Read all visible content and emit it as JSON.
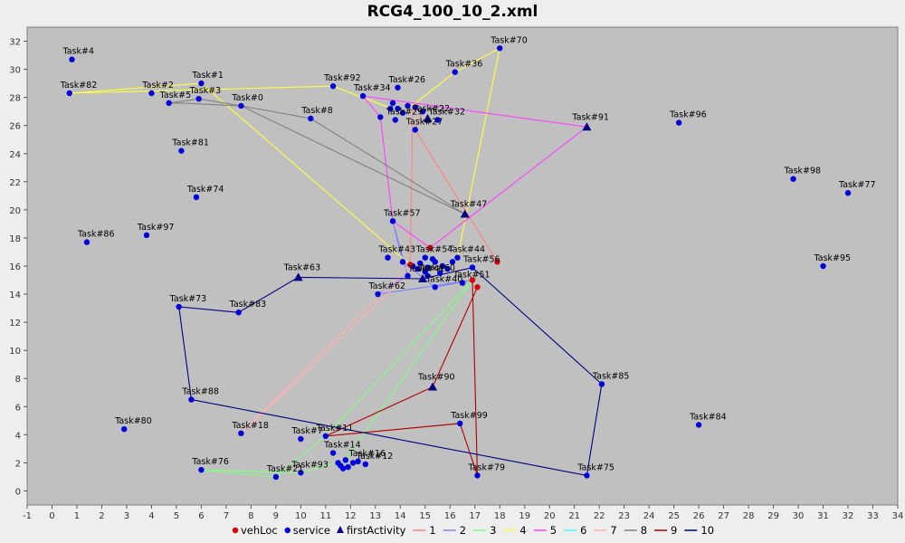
{
  "chart_data": {
    "type": "scatter",
    "title": "RCG4_100_10_2.xml",
    "xlabel": "",
    "ylabel": "",
    "xlim": [
      -1,
      34
    ],
    "ylim": [
      -1,
      33
    ],
    "grid": false,
    "legend_position": "bottom",
    "x_ticks": [
      -1,
      0,
      1,
      2,
      3,
      4,
      5,
      6,
      7,
      8,
      9,
      10,
      11,
      12,
      13,
      14,
      15,
      16,
      17,
      18,
      19,
      20,
      21,
      22,
      23,
      24,
      25,
      26,
      27,
      28,
      29,
      30,
      31,
      32,
      33,
      34
    ],
    "y_ticks": [
      0,
      2,
      4,
      6,
      8,
      10,
      12,
      14,
      16,
      18,
      20,
      22,
      24,
      26,
      28,
      30,
      32
    ],
    "legend": [
      {
        "label": "vehLoc",
        "kind": "dot",
        "color": "#dd0000"
      },
      {
        "label": "service",
        "kind": "dot",
        "color": "#0000dd"
      },
      {
        "label": "firstActivity",
        "kind": "triangle",
        "color": "#000080"
      },
      {
        "label": "1",
        "kind": "line",
        "color": "#ff8080"
      },
      {
        "label": "2",
        "kind": "line",
        "color": "#8080ff"
      },
      {
        "label": "3",
        "kind": "line",
        "color": "#80ff80"
      },
      {
        "label": "4",
        "kind": "line",
        "color": "#ffff40"
      },
      {
        "label": "5",
        "kind": "line",
        "color": "#ff40ff"
      },
      {
        "label": "6",
        "kind": "line",
        "color": "#40ffff"
      },
      {
        "label": "7",
        "kind": "line",
        "color": "#ffb0b0"
      },
      {
        "label": "8",
        "kind": "line",
        "color": "#808080"
      },
      {
        "label": "9",
        "kind": "line",
        "color": "#b00000"
      },
      {
        "label": "10",
        "kind": "line",
        "color": "#000080"
      }
    ],
    "vehicle_locations": [
      {
        "x": 17.9,
        "y": 16.3
      },
      {
        "x": 15.2,
        "y": 17.3
      },
      {
        "x": 16.9,
        "y": 15.0
      },
      {
        "x": 17.1,
        "y": 14.5
      },
      {
        "x": 14.4,
        "y": 16.1
      }
    ],
    "services": [
      {
        "label": "Task#1",
        "x": 6.0,
        "y": 29.0
      },
      {
        "label": "Task#2",
        "x": 4.0,
        "y": 28.3
      },
      {
        "label": "Task#3",
        "x": 5.9,
        "y": 27.9
      },
      {
        "label": "Task#4",
        "x": 0.8,
        "y": 30.7
      },
      {
        "label": "Task#5",
        "x": 4.7,
        "y": 27.6
      },
      {
        "label": "Task#0",
        "x": 7.6,
        "y": 27.4
      },
      {
        "label": "Task#82",
        "x": 0.7,
        "y": 28.3
      },
      {
        "label": "Task#92",
        "x": 11.3,
        "y": 28.8
      },
      {
        "label": "Task#34",
        "x": 12.5,
        "y": 28.1
      },
      {
        "label": "Task#26",
        "x": 13.9,
        "y": 28.7
      },
      {
        "label": "Task#8",
        "x": 10.4,
        "y": 26.5
      },
      {
        "label": "Task#36",
        "x": 16.2,
        "y": 29.8
      },
      {
        "label": "Task#70",
        "x": 18.0,
        "y": 31.5
      },
      {
        "label": "Task#96",
        "x": 25.2,
        "y": 26.2
      },
      {
        "label": "Task#81",
        "x": 5.2,
        "y": 24.2
      },
      {
        "label": "Task#98",
        "x": 29.8,
        "y": 22.2
      },
      {
        "label": "Task#77",
        "x": 32.0,
        "y": 21.2
      },
      {
        "label": "Task#74",
        "x": 5.8,
        "y": 20.9
      },
      {
        "label": "Task#86",
        "x": 1.4,
        "y": 17.7
      },
      {
        "label": "Task#97",
        "x": 3.8,
        "y": 18.2
      },
      {
        "label": "Task#57",
        "x": 13.7,
        "y": 19.2
      },
      {
        "label": "Task#43",
        "x": 13.5,
        "y": 16.6
      },
      {
        "label": "Task#44",
        "x": 16.3,
        "y": 16.6
      },
      {
        "label": "Task#56",
        "x": 16.9,
        "y": 15.9
      },
      {
        "label": "Task#51",
        "x": 16.5,
        "y": 14.8
      },
      {
        "label": "Task#62",
        "x": 13.1,
        "y": 14.0
      },
      {
        "label": "Task#40",
        "x": 15.4,
        "y": 14.5
      },
      {
        "label": "Task#95",
        "x": 31.0,
        "y": 16.0
      },
      {
        "label": "Task#73",
        "x": 5.1,
        "y": 13.1
      },
      {
        "label": "Task#83",
        "x": 7.5,
        "y": 12.7
      },
      {
        "label": "Task#88",
        "x": 5.6,
        "y": 6.5
      },
      {
        "label": "Task#85",
        "x": 22.1,
        "y": 7.6
      },
      {
        "label": "Task#99",
        "x": 16.4,
        "y": 4.8
      },
      {
        "label": "Task#84",
        "x": 26.0,
        "y": 4.7
      },
      {
        "label": "Task#80",
        "x": 2.9,
        "y": 4.4
      },
      {
        "label": "Task#18",
        "x": 7.6,
        "y": 4.1
      },
      {
        "label": "Task#11",
        "x": 11.0,
        "y": 3.9
      },
      {
        "label": "Task#7",
        "x": 10.0,
        "y": 3.7
      },
      {
        "label": "Task#14",
        "x": 11.3,
        "y": 2.7
      },
      {
        "label": "Task#16",
        "x": 12.3,
        "y": 2.1
      },
      {
        "label": "Task#12",
        "x": 12.6,
        "y": 1.9
      },
      {
        "label": "Task#76",
        "x": 6.0,
        "y": 1.5
      },
      {
        "label": "Task#93",
        "x": 10.0,
        "y": 1.3
      },
      {
        "label": "Task#21",
        "x": 9.0,
        "y": 1.0
      },
      {
        "label": "Task#79",
        "x": 17.1,
        "y": 1.1
      },
      {
        "label": "Task#75",
        "x": 21.5,
        "y": 1.1
      },
      {
        "label": "Task#27",
        "x": 14.6,
        "y": 25.7
      },
      {
        "label": "Task#32",
        "x": 15.5,
        "y": 26.4
      },
      {
        "label": "Task#29",
        "x": 13.8,
        "y": 26.4
      },
      {
        "label": "Task#54",
        "x": 15.0,
        "y": 16.6
      },
      {
        "label": "Task#60",
        "x": 15.1,
        "y": 15.3
      }
    ],
    "first_activities": [
      {
        "label": "Task#91",
        "x": 21.5,
        "y": 25.9
      },
      {
        "label": "Task#47",
        "x": 16.6,
        "y": 19.7
      },
      {
        "label": "Task#63",
        "x": 9.9,
        "y": 15.2
      },
      {
        "label": "Task#90",
        "x": 15.3,
        "y": 7.4
      },
      {
        "label": "Task#22",
        "x": 15.1,
        "y": 26.5
      },
      {
        "label": "Task#41",
        "x": 14.9,
        "y": 15.1
      }
    ],
    "cluster_points": [
      {
        "x": 13.2,
        "y": 26.6
      },
      {
        "x": 13.9,
        "y": 27.2
      },
      {
        "x": 14.3,
        "y": 27.4
      },
      {
        "x": 13.7,
        "y": 27.6
      },
      {
        "x": 14.6,
        "y": 27.3
      },
      {
        "x": 14.9,
        "y": 27.0
      },
      {
        "x": 13.6,
        "y": 27.2
      },
      {
        "x": 14.1,
        "y": 26.9
      },
      {
        "x": 14.1,
        "y": 16.3
      },
      {
        "x": 14.5,
        "y": 16.0
      },
      {
        "x": 14.8,
        "y": 16.2
      },
      {
        "x": 15.1,
        "y": 15.9
      },
      {
        "x": 15.4,
        "y": 16.3
      },
      {
        "x": 15.7,
        "y": 16.0
      },
      {
        "x": 15.0,
        "y": 15.6
      },
      {
        "x": 15.6,
        "y": 15.5
      },
      {
        "x": 15.9,
        "y": 15.8
      },
      {
        "x": 16.1,
        "y": 16.3
      },
      {
        "x": 14.3,
        "y": 15.3
      },
      {
        "x": 14.7,
        "y": 15.8
      },
      {
        "x": 15.3,
        "y": 16.5
      },
      {
        "x": 11.8,
        "y": 2.2
      },
      {
        "x": 11.6,
        "y": 1.8
      },
      {
        "x": 11.9,
        "y": 1.7
      },
      {
        "x": 12.1,
        "y": 2.0
      },
      {
        "x": 11.5,
        "y": 2.0
      },
      {
        "x": 11.7,
        "y": 1.6
      }
    ],
    "routes": [
      {
        "name": "1",
        "color": "#ff8080",
        "points": [
          [
            17.9,
            16.3
          ],
          [
            14.6,
            25.7
          ],
          [
            14.9,
            27.0
          ],
          [
            14.5,
            27.2
          ],
          [
            14.4,
            16.1
          ]
        ]
      },
      {
        "name": "2",
        "color": "#8080ff",
        "points": [
          [
            16.9,
            15.0
          ],
          [
            13.1,
            14.0
          ],
          [
            14.3,
            15.3
          ],
          [
            13.7,
            19.2
          ],
          [
            14.1,
            16.3
          ],
          [
            15.4,
            14.5
          ],
          [
            16.9,
            15.0
          ]
        ]
      },
      {
        "name": "3",
        "color": "#80ff80",
        "points": [
          [
            16.9,
            15.0
          ],
          [
            11.0,
            3.9
          ],
          [
            9.0,
            1.0
          ],
          [
            6.0,
            1.5
          ],
          [
            10.0,
            1.3
          ],
          [
            11.8,
            2.2
          ],
          [
            16.9,
            15.0
          ]
        ]
      },
      {
        "name": "4",
        "color": "#ffff40",
        "points": [
          [
            14.4,
            16.1
          ],
          [
            6.0,
            29.0
          ],
          [
            0.7,
            28.3
          ],
          [
            11.3,
            28.8
          ],
          [
            14.1,
            26.9
          ],
          [
            16.2,
            29.8
          ],
          [
            18.0,
            31.5
          ],
          [
            16.3,
            16.6
          ]
        ]
      },
      {
        "name": "5",
        "color": "#ff40ff",
        "points": [
          [
            15.2,
            17.3
          ],
          [
            21.5,
            25.9
          ],
          [
            12.5,
            28.1
          ],
          [
            13.2,
            26.6
          ],
          [
            13.7,
            19.2
          ],
          [
            15.2,
            17.3
          ]
        ]
      },
      {
        "name": "6",
        "color": "#40ffff",
        "points": [
          [
            15.0,
            16.6
          ],
          [
            15.3,
            16.5
          ],
          [
            15.0,
            15.6
          ]
        ]
      },
      {
        "name": "7",
        "color": "#ffb0b0",
        "points": [
          [
            14.4,
            16.1
          ],
          [
            7.6,
            4.1
          ],
          [
            14.8,
            16.2
          ]
        ]
      },
      {
        "name": "8",
        "color": "#808080",
        "points": [
          [
            16.6,
            19.7
          ],
          [
            10.4,
            26.5
          ],
          [
            7.6,
            27.4
          ],
          [
            5.2,
            27.6
          ],
          [
            4.7,
            27.6
          ],
          [
            5.9,
            27.9
          ],
          [
            7.6,
            27.4
          ],
          [
            16.6,
            19.7
          ]
        ]
      },
      {
        "name": "9",
        "color": "#b00000",
        "points": [
          [
            17.1,
            14.5
          ],
          [
            15.3,
            7.4
          ],
          [
            11.0,
            3.9
          ],
          [
            16.4,
            4.8
          ],
          [
            17.1,
            1.1
          ],
          [
            16.9,
            15.0
          ]
        ]
      },
      {
        "name": "10",
        "color": "#000080",
        "points": [
          [
            16.9,
            15.9
          ],
          [
            22.1,
            7.6
          ],
          [
            21.5,
            1.1
          ],
          [
            5.6,
            6.5
          ],
          [
            5.1,
            13.1
          ],
          [
            7.5,
            12.7
          ],
          [
            9.9,
            15.2
          ],
          [
            14.9,
            15.1
          ],
          [
            16.9,
            15.9
          ]
        ]
      }
    ]
  }
}
